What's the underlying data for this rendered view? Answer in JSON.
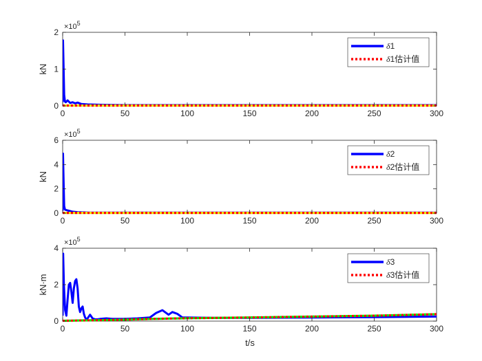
{
  "figure": {
    "xlabel": "t/s"
  },
  "colors": {
    "true_line": "#0000ff",
    "estimate_dash": "#ff0000",
    "estimate_overlay": "#e6e600",
    "estimate_overlay_3": "#00e600",
    "axis": "#262626"
  },
  "chart_data": [
    {
      "type": "line",
      "ylabel": "kN",
      "exponent": "5",
      "ylim": [
        0,
        2
      ],
      "yticks": [
        0,
        1,
        2
      ],
      "xlim": [
        0,
        300
      ],
      "xticks": [
        0,
        50,
        100,
        150,
        200,
        250,
        300
      ],
      "legend_position": "top-right",
      "legend": [
        {
          "glyph": "δ",
          "text": "1",
          "style": "solid"
        },
        {
          "glyph": "δ",
          "text": "1估计值",
          "style": "dotted"
        }
      ],
      "series": [
        {
          "style": "solid",
          "x": [
            0,
            0.3,
            0.8,
            1.2,
            1.8,
            2.5,
            4,
            6,
            8,
            10,
            12,
            15,
            20,
            30,
            50,
            100,
            300
          ],
          "y": [
            0.1,
            1.78,
            1.0,
            0.3,
            0.12,
            0.1,
            0.15,
            0.08,
            0.1,
            0.07,
            0.09,
            0.05,
            0.04,
            0.03,
            0.02,
            0.02,
            0.02
          ]
        },
        {
          "style": "dotted",
          "x": [
            0,
            5,
            20,
            300
          ],
          "y": [
            0.01,
            0.01,
            0.01,
            0.01
          ]
        }
      ]
    },
    {
      "type": "line",
      "ylabel": "kN",
      "exponent": "5",
      "ylim": [
        0,
        6
      ],
      "yticks": [
        0,
        2,
        4,
        6
      ],
      "xlim": [
        0,
        300
      ],
      "xticks": [
        0,
        50,
        100,
        150,
        200,
        250,
        300
      ],
      "legend_position": "top-right",
      "legend": [
        {
          "glyph": "δ",
          "text": "2",
          "style": "solid"
        },
        {
          "glyph": "δ",
          "text": "2估计值",
          "style": "dotted"
        }
      ],
      "series": [
        {
          "style": "solid",
          "x": [
            0,
            0.3,
            0.8,
            1.2,
            1.8,
            3,
            5,
            8,
            12,
            20,
            30,
            300
          ],
          "y": [
            0.2,
            4.9,
            2.5,
            0.6,
            0.3,
            0.25,
            0.2,
            0.12,
            0.08,
            0.05,
            0.04,
            0.04
          ]
        },
        {
          "style": "dotted",
          "x": [
            0,
            300
          ],
          "y": [
            0.02,
            0.02
          ]
        }
      ]
    },
    {
      "type": "line",
      "ylabel": "kN·m",
      "exponent": "5",
      "ylim": [
        0,
        4
      ],
      "yticks": [
        0,
        2,
        4
      ],
      "xlim": [
        0,
        300
      ],
      "xticks": [
        0,
        50,
        100,
        150,
        200,
        250,
        300
      ],
      "legend_position": "top-right",
      "legend": [
        {
          "glyph": "δ",
          "text": "3",
          "style": "solid"
        },
        {
          "glyph": "δ",
          "text": "3估计值",
          "style": "dotted"
        }
      ],
      "series": [
        {
          "style": "solid",
          "x": [
            0,
            0.4,
            1,
            2,
            3,
            4,
            5,
            6,
            7,
            8,
            9,
            10,
            11,
            12,
            13,
            14,
            15,
            16,
            17,
            18,
            19,
            20,
            22,
            24,
            26,
            28,
            30,
            35,
            40,
            50,
            60,
            70,
            75,
            80,
            85,
            88,
            92,
            96,
            100,
            120,
            150,
            200,
            250,
            300
          ],
          "y": [
            0.3,
            3.7,
            2.0,
            0.6,
            0.3,
            1.2,
            2.0,
            2.1,
            1.6,
            1.0,
            1.8,
            2.2,
            2.3,
            1.8,
            0.8,
            0.5,
            0.7,
            0.8,
            0.4,
            0.2,
            0.1,
            0.15,
            0.35,
            0.15,
            0.1,
            0.1,
            0.12,
            0.15,
            0.12,
            0.12,
            0.15,
            0.2,
            0.45,
            0.6,
            0.35,
            0.5,
            0.4,
            0.2,
            0.2,
            0.18,
            0.18,
            0.2,
            0.22,
            0.25
          ]
        },
        {
          "style": "dotted",
          "x": [
            0,
            50,
            70,
            100,
            150,
            200,
            250,
            300
          ],
          "y": [
            0.02,
            0.08,
            0.12,
            0.16,
            0.2,
            0.25,
            0.3,
            0.38
          ]
        }
      ]
    }
  ]
}
